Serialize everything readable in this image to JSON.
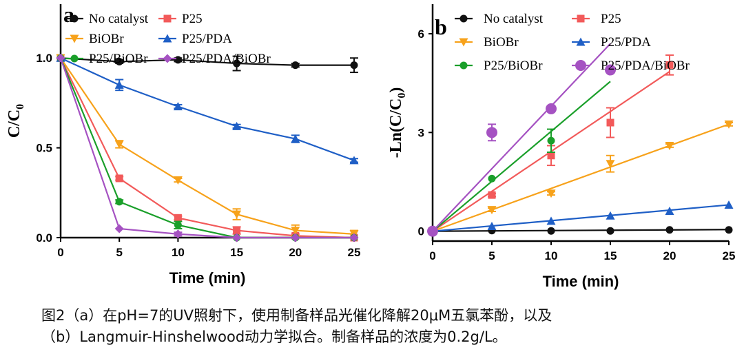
{
  "colors": {
    "No catalyst": "#111111",
    "P25": "#f25a5a",
    "BiOBr": "#f7a21b",
    "P25/PDA": "#1f5fc6",
    "P25/BiOBr": "#1a9f2a",
    "P25/PDA/BiOBr": "#a552c2"
  },
  "chart_data": [
    {
      "panel": "a",
      "type": "line",
      "xlabel": "Time (min)",
      "ylabel_main": "C/C",
      "ylabel_sub": "0",
      "xlim": [
        0,
        25
      ],
      "ylim": [
        0,
        1.3
      ],
      "xticks": [
        0,
        5,
        10,
        15,
        20,
        25
      ],
      "xtick_labels": [
        "0",
        "5",
        "10",
        "15",
        "20",
        "25"
      ],
      "yticks": [
        0,
        0.5,
        1.0
      ],
      "ytick_labels": [
        "0.0",
        "0.5",
        "1.0"
      ],
      "legend": [
        "No catalyst",
        "P25",
        "BiOBr",
        "P25/PDA",
        "P25/BiOBr",
        "P25/PDA/BiOBr"
      ],
      "series": [
        {
          "name": "No catalyst",
          "marker": "circle",
          "x": [
            0,
            5,
            10,
            15,
            20,
            25
          ],
          "y": [
            1.0,
            0.98,
            0.99,
            0.97,
            0.96,
            0.96
          ],
          "err": [
            0,
            0.01,
            0.01,
            0.04,
            0.01,
            0.04
          ]
        },
        {
          "name": "P25",
          "marker": "square",
          "x": [
            0,
            5,
            10,
            15,
            20,
            25
          ],
          "y": [
            1.0,
            0.33,
            0.11,
            0.04,
            0.01,
            0.0
          ],
          "err": [
            0,
            0.01,
            0.01,
            0.02,
            0.01,
            0.0
          ]
        },
        {
          "name": "BiOBr",
          "marker": "triangle-down",
          "x": [
            0,
            5,
            10,
            15,
            20,
            25
          ],
          "y": [
            1.0,
            0.52,
            0.32,
            0.13,
            0.04,
            0.02
          ],
          "err": [
            0,
            0.02,
            0.01,
            0.03,
            0.03,
            0.02
          ]
        },
        {
          "name": "P25/PDA",
          "marker": "triangle-up",
          "x": [
            0,
            5,
            10,
            15,
            20,
            25
          ],
          "y": [
            1.0,
            0.85,
            0.73,
            0.62,
            0.55,
            0.43
          ],
          "err": [
            0,
            0.03,
            0.01,
            0.01,
            0.02,
            0.01
          ]
        },
        {
          "name": "P25/BiOBr",
          "marker": "circle",
          "x": [
            0,
            5,
            10,
            15,
            20,
            25
          ],
          "y": [
            1.0,
            0.2,
            0.07,
            0.0,
            0.0,
            0.0
          ],
          "err": [
            0,
            0.01,
            0.02,
            0.0,
            0.0,
            0.0
          ]
        },
        {
          "name": "P25/PDA/BiOBr",
          "marker": "diamond",
          "x": [
            0,
            5,
            10,
            15,
            20,
            25
          ],
          "y": [
            1.0,
            0.05,
            0.02,
            0.0,
            0.0,
            0.0
          ],
          "err": [
            0,
            0.0,
            0.01,
            0.0,
            0.0,
            0.0
          ]
        }
      ]
    },
    {
      "panel": "b",
      "type": "scatter",
      "xlabel": "Time (min)",
      "ylabel_main": "-Ln(C/C",
      "ylabel_sub": "0",
      "ylabel_end": ")",
      "xlim": [
        0,
        25
      ],
      "ylim": [
        -0.3,
        6.9
      ],
      "xticks": [
        0,
        5,
        10,
        15,
        20,
        25
      ],
      "xtick_labels": [
        "0",
        "5",
        "10",
        "15",
        "20",
        "25"
      ],
      "yticks": [
        0,
        3,
        6
      ],
      "ytick_labels": [
        "0",
        "3",
        "6"
      ],
      "legend": [
        "No catalyst",
        "P25",
        "BiOBr",
        "P25/PDA",
        "P25/BiOBr",
        "P25/PDA/BiOBr"
      ],
      "series": [
        {
          "name": "No catalyst",
          "marker": "circle",
          "x": [
            0,
            5,
            10,
            15,
            20,
            25
          ],
          "y": [
            0,
            0.02,
            0.01,
            0.01,
            0.04,
            0.04
          ],
          "err": [
            0,
            0,
            0,
            0,
            0,
            0
          ],
          "fit": [
            0,
            25,
            0,
            0.05
          ]
        },
        {
          "name": "P25",
          "marker": "square",
          "x": [
            0,
            5,
            10,
            15,
            20
          ],
          "y": [
            0,
            1.1,
            2.3,
            3.3,
            5.05
          ],
          "err": [
            0,
            0.05,
            0.3,
            0.45,
            0.3
          ],
          "fit": [
            0,
            20,
            0,
            4.85
          ]
        },
        {
          "name": "BiOBr",
          "marker": "triangle-down",
          "x": [
            0,
            5,
            10,
            15,
            20,
            25
          ],
          "y": [
            0,
            0.65,
            1.15,
            2.05,
            2.6,
            3.25
          ],
          "err": [
            0,
            0.05,
            0.05,
            0.25,
            0.05,
            0.05
          ],
          "fit": [
            0,
            25,
            0,
            3.25
          ]
        },
        {
          "name": "P25/PDA",
          "marker": "triangle-up",
          "x": [
            0,
            5,
            10,
            15,
            20,
            25
          ],
          "y": [
            0,
            0.15,
            0.31,
            0.47,
            0.61,
            0.8
          ],
          "err": [
            0,
            0,
            0,
            0,
            0,
            0
          ],
          "fit": [
            0,
            25,
            0,
            0.8
          ]
        },
        {
          "name": "P25/BiOBr",
          "marker": "circle",
          "x": [
            0,
            5,
            10
          ],
          "y": [
            0,
            1.6,
            2.75
          ],
          "err": [
            0,
            0,
            0.35
          ],
          "fit": [
            0,
            15,
            0,
            4.55
          ]
        },
        {
          "name": "P25/PDA/BiOBr",
          "marker": "circle-big",
          "x": [
            0,
            5,
            10,
            15
          ],
          "y": [
            0,
            3.0,
            3.72,
            4.9
          ],
          "err": [
            0,
            0.25,
            0.05,
            0.05
          ],
          "fit": [
            0,
            15,
            0,
            5.7
          ]
        }
      ]
    }
  ],
  "caption": {
    "line1": "图2（a）在pH=7的UV照射下，使用制备样品光催化降解20μM五氯苯酚，以及",
    "line2": "（b）Langmuir-Hinshelwood动力学拟合。制备样品的浓度为0.2g/L。"
  }
}
